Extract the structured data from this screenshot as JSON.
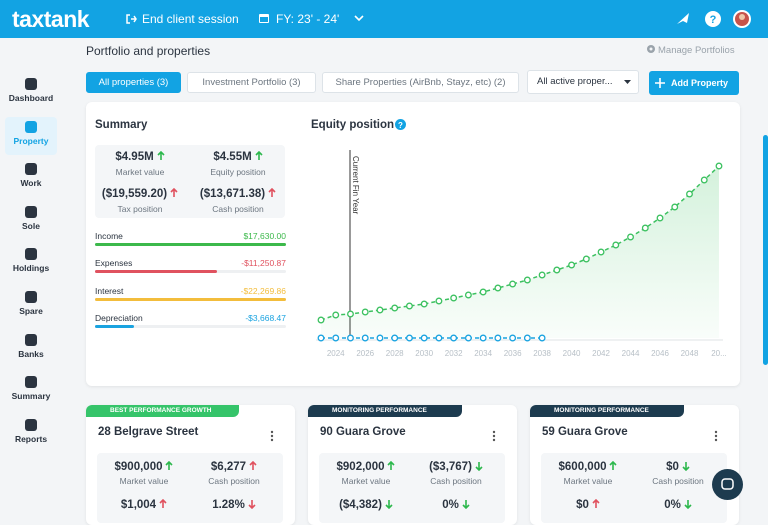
{
  "header": {
    "logo": "taxtank",
    "end_session": "End client session",
    "fy": "FY: 23' - 24'"
  },
  "sidebar": {
    "items": [
      "Dashboard",
      "Property",
      "Work",
      "Sole",
      "Holdings",
      "Spare",
      "Banks",
      "Summary",
      "Reports"
    ],
    "active": 1
  },
  "page": {
    "title": "Portfolio and properties",
    "manage": "Manage Portfolios",
    "tabs": [
      "All properties (3)",
      "Investment Portfolio (3)",
      "Share Properties (AirBnb, Stayz, etc) (2)"
    ],
    "active_tab": 0,
    "filter": "All active proper...",
    "add_button": "Add Property"
  },
  "summary": {
    "title": "Summary",
    "metrics": [
      {
        "value": "$4.95M",
        "label": "Market value",
        "trend": {
          "dir": "up",
          "color": "#2db84d"
        }
      },
      {
        "value": "$4.55M",
        "label": "Equity position",
        "trend": {
          "dir": "up",
          "color": "#2db84d"
        }
      },
      {
        "value": "($19,559.20)",
        "label": "Tax position",
        "trend": {
          "dir": "up",
          "color": "#e0525f"
        }
      },
      {
        "value": "($13,671.38)",
        "label": "Cash position",
        "trend": {
          "dir": "up",
          "color": "#e0525f"
        }
      }
    ],
    "bars": [
      {
        "name": "Income",
        "value": "$17,630.00",
        "color": "#3cb94b"
      },
      {
        "name": "Expenses",
        "value": "-$11,250.87",
        "color": "#e0525f"
      },
      {
        "name": "Interest",
        "value": "-$22,269.86",
        "color": "#f3bd3c"
      },
      {
        "name": "Depreciation",
        "value": "-$3,668.47",
        "color": "#1aa3e0"
      }
    ]
  },
  "chart_data": {
    "type": "line",
    "title": "Equity position",
    "annotation": "Current Fin Year",
    "categories": [
      null,
      "2024",
      null,
      "2026",
      null,
      "2028",
      null,
      "2030",
      null,
      "2032",
      null,
      "2034",
      null,
      "2036",
      null,
      "2038",
      null,
      "2040",
      null,
      "2042",
      null,
      "2044",
      null,
      "2046",
      null,
      "2048",
      null,
      "20..."
    ],
    "series": [
      {
        "color": "#3cc160",
        "values": [
          18,
          23,
          24,
          26,
          28,
          30,
          32,
          34,
          37,
          40,
          43,
          46,
          50,
          54,
          58,
          63,
          68,
          73,
          79,
          86,
          93,
          101,
          110,
          120,
          131,
          144,
          158,
          172
        ]
      },
      {
        "color": "#1aa3e0",
        "values": [
          0,
          0,
          0,
          0,
          0,
          0,
          0,
          0,
          0,
          0,
          0,
          0,
          0,
          0,
          0,
          0,
          null,
          null,
          null,
          null,
          null,
          null,
          null,
          null,
          null,
          null,
          null,
          null
        ]
      }
    ],
    "ylim": [
      0,
      180
    ]
  },
  "properties": [
    {
      "badge": "BEST PERFORMANCE GROWTH",
      "badge_color": "#35c46a",
      "name": "28 Belgrave Street",
      "metrics": [
        {
          "value": "$900,000",
          "label": "Market value",
          "trend": {
            "dir": "up",
            "color": "#2db84d"
          }
        },
        {
          "value": "$6,277",
          "label": "Cash position",
          "trend": {
            "dir": "up",
            "color": "#e0525f"
          }
        },
        {
          "value": "$1,004",
          "trend": {
            "dir": "up",
            "color": "#e0525f"
          }
        },
        {
          "value": "1.28%",
          "trend": {
            "dir": "down",
            "color": "#e0525f"
          }
        }
      ]
    },
    {
      "badge": "MONITORING PERFORMANCE",
      "badge_color": "#1d3b4f",
      "name": "90 Guara Grove",
      "metrics": [
        {
          "value": "$902,000",
          "label": "Market value",
          "trend": {
            "dir": "up",
            "color": "#2db84d"
          }
        },
        {
          "value": "($3,767)",
          "label": "Cash position",
          "trend": {
            "dir": "down",
            "color": "#2db84d"
          }
        },
        {
          "value": "($4,382)",
          "trend": {
            "dir": "down",
            "color": "#2db84d"
          }
        },
        {
          "value": "0%",
          "trend": {
            "dir": "down",
            "color": "#2db84d"
          }
        }
      ]
    },
    {
      "badge": "MONITORING PERFORMANCE",
      "badge_color": "#1d3b4f",
      "name": "59 Guara Grove",
      "metrics": [
        {
          "value": "$600,000",
          "label": "Market value",
          "trend": {
            "dir": "up",
            "color": "#2db84d"
          }
        },
        {
          "value": "$0",
          "label": "Cash position",
          "trend": {
            "dir": "down",
            "color": "#2db84d"
          }
        },
        {
          "value": "$0",
          "trend": {
            "dir": "up",
            "color": "#e0525f"
          }
        },
        {
          "value": "0%",
          "trend": {
            "dir": "down",
            "color": "#2db84d"
          }
        }
      ]
    }
  ]
}
